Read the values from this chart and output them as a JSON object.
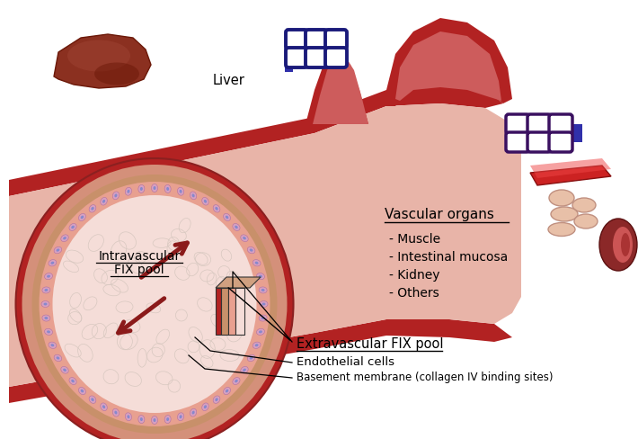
{
  "background_color": "#ffffff",
  "liver_label": "Liver",
  "vascular_organs_label": "Vascular organs",
  "vascular_list": [
    "- Muscle",
    "- Intestinal mucosa",
    "- Kidney",
    "- Others"
  ],
  "intravascular_label_line1": "Intravascular",
  "intravascular_label_line2": "FIX pool",
  "extravascular_label": "Extravascular FIX pool",
  "endothelial_label": "Endothelial cells",
  "basement_label": "Basement membrane (collagen IV binding sites)",
  "arrow_color": "#8B1A1A",
  "vessel_red_dark": "#B22222",
  "vessel_red_mid": "#CD5C5C",
  "vessel_red_light": "#E8A090",
  "vessel_pink_mid": "#E8B4A8",
  "vessel_inner": "#F5DDD8",
  "endothelial_dot_fill": "#D8A0C0",
  "endothelial_dot_edge": "#B070A0",
  "basement_tan": "#C8906A",
  "outer_skin": "#D4907A",
  "capillary_blue_top": "#1A1A7A",
  "capillary_blue_right": "#3A1060",
  "blue_connector": "#3030AA",
  "vessel_outline": "#8B2020"
}
